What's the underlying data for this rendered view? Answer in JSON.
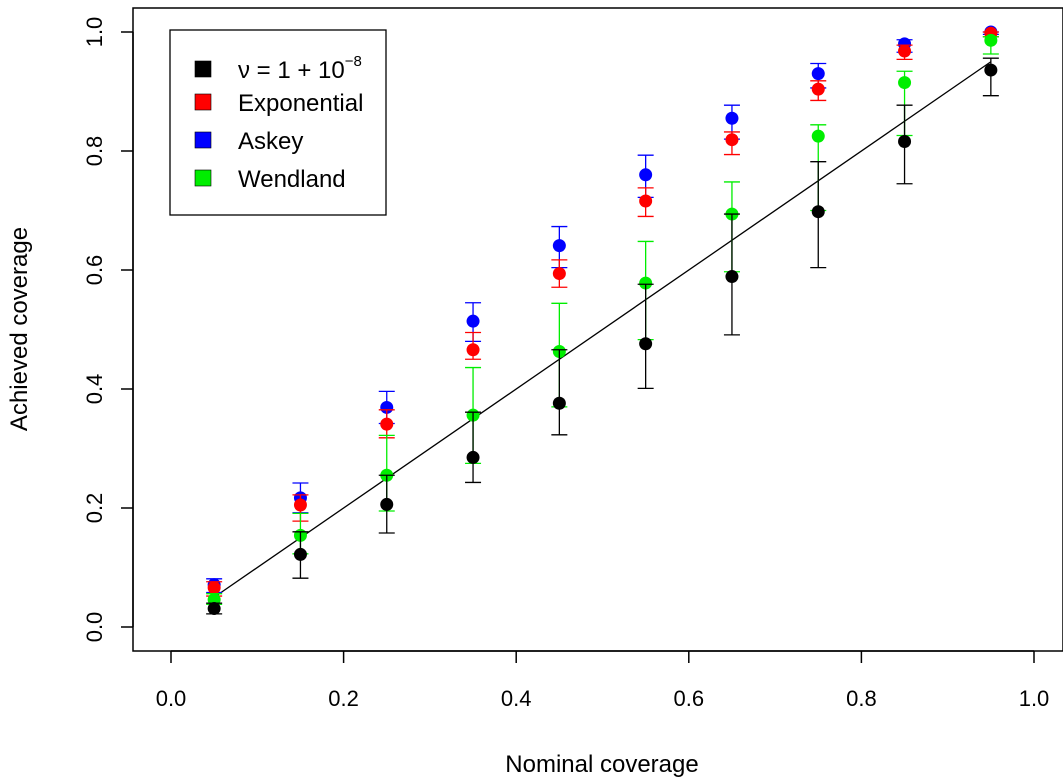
{
  "chart_data": {
    "type": "scatter",
    "title": "",
    "xlabel": "Nominal coverage",
    "ylabel": "Achieved coverage",
    "xlim": [
      0.0,
      1.0
    ],
    "ylim": [
      0.0,
      1.0
    ],
    "x_ticks": [
      "0.0",
      "0.2",
      "0.4",
      "0.6",
      "0.8",
      "1.0"
    ],
    "y_ticks": [
      "0.0",
      "0.2",
      "0.4",
      "0.6",
      "0.8",
      "1.0"
    ],
    "grid": false,
    "legend_position": "top-left",
    "reference_line": {
      "from": [
        0.05,
        0.05
      ],
      "to": [
        0.95,
        0.95
      ]
    },
    "x": [
      0.05,
      0.15,
      0.25,
      0.35,
      0.45,
      0.55,
      0.65,
      0.75,
      0.85,
      0.95
    ],
    "series": [
      {
        "legend_base": "ν = 1 + 10",
        "legend_exp": "−8",
        "color": "#000000",
        "y": [
          0.031,
          0.122,
          0.206,
          0.285,
          0.376,
          0.476,
          0.589,
          0.698,
          0.816,
          0.936
        ],
        "low": [
          0.022,
          0.082,
          0.158,
          0.243,
          0.323,
          0.401,
          0.491,
          0.604,
          0.745,
          0.893
        ],
        "high": [
          0.04,
          0.16,
          0.255,
          0.361,
          0.466,
          0.576,
          0.694,
          0.782,
          0.877,
          0.956
        ]
      },
      {
        "name": "Exponential",
        "color": "#ff0000",
        "y": [
          0.066,
          0.205,
          0.341,
          0.466,
          0.594,
          0.716,
          0.819,
          0.904,
          0.968,
          0.998
        ],
        "low": [
          0.052,
          0.178,
          0.318,
          0.45,
          0.571,
          0.69,
          0.794,
          0.885,
          0.954,
          0.992
        ],
        "high": [
          0.076,
          0.222,
          0.365,
          0.495,
          0.617,
          0.738,
          0.832,
          0.918,
          0.978,
          1.0
        ]
      },
      {
        "name": "Askey",
        "color": "#0000ff",
        "y": [
          0.071,
          0.217,
          0.369,
          0.514,
          0.641,
          0.76,
          0.855,
          0.93,
          0.98,
          1.0
        ],
        "low": [
          0.058,
          0.192,
          0.342,
          0.48,
          0.604,
          0.722,
          0.82,
          0.906,
          0.966,
          0.996
        ],
        "high": [
          0.081,
          0.242,
          0.396,
          0.545,
          0.673,
          0.793,
          0.877,
          0.947,
          0.987,
          1.0
        ]
      },
      {
        "name": "Wendland",
        "color": "#00ee00",
        "y": [
          0.046,
          0.154,
          0.255,
          0.356,
          0.463,
          0.578,
          0.694,
          0.825,
          0.915,
          0.986
        ],
        "low": [
          0.038,
          0.123,
          0.195,
          0.275,
          0.37,
          0.483,
          0.597,
          0.7,
          0.826,
          0.963
        ],
        "high": [
          0.056,
          0.191,
          0.322,
          0.436,
          0.544,
          0.648,
          0.748,
          0.844,
          0.934,
          0.992
        ]
      }
    ]
  }
}
